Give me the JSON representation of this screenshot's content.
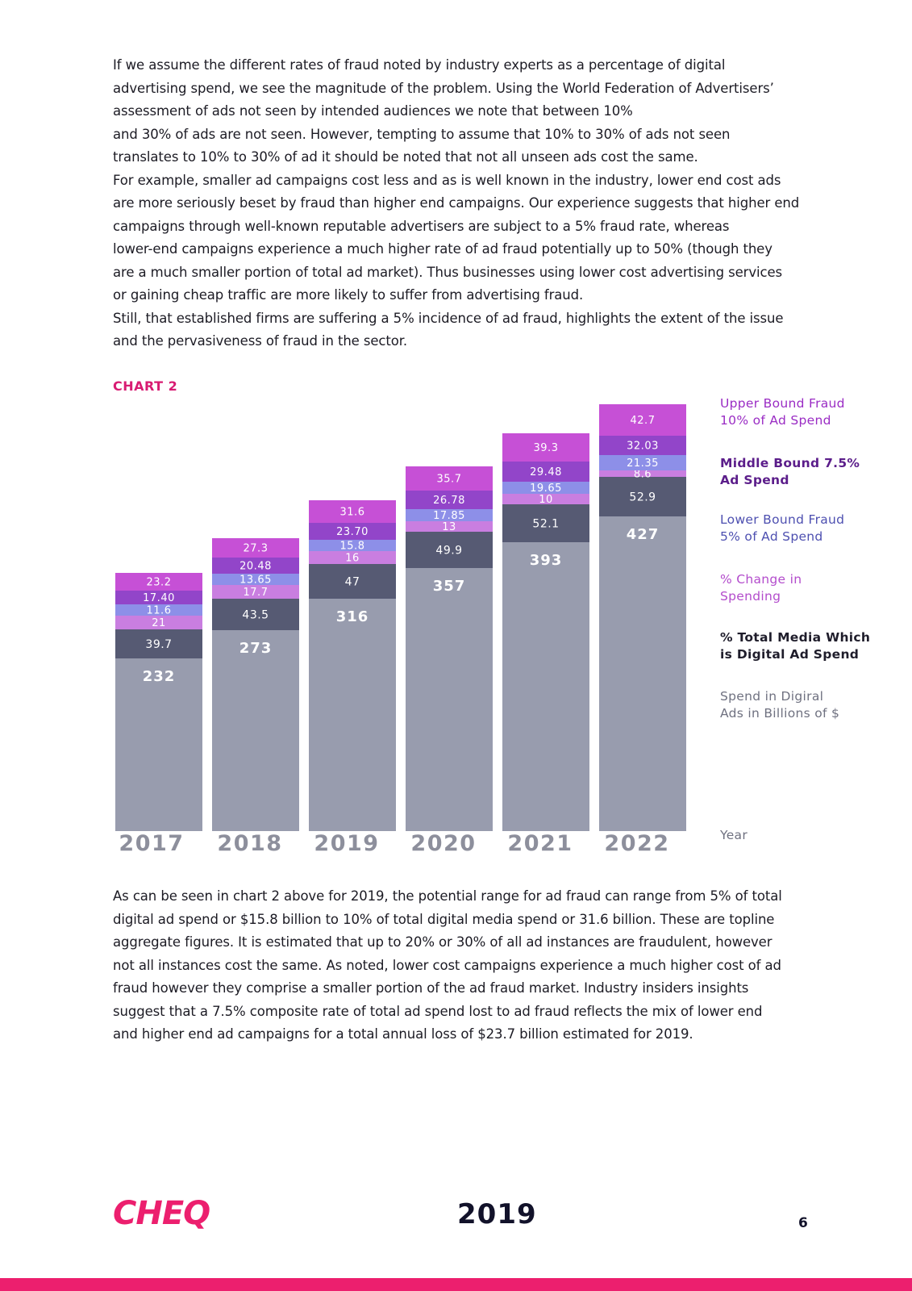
{
  "top_paragraph": {
    "lines": [
      "If we assume the different rates of fraud noted by industry experts as a percentage of digital",
      "advertising spend, we see the magnitude of the problem. Using the World Federation of Advertisers’",
      "assessment of ads not seen by intended audiences we note that between 10%",
      "and 30% of ads are not seen. However, tempting to assume that 10% to 30% of ads not seen",
      "translates to 10% to 30% of ad it should be noted that not all unseen ads cost the same.",
      "For example, smaller ad campaigns cost less and as is well known in the industry, lower end cost ads",
      "are more seriously beset by fraud than higher end campaigns. Our experience suggests that higher end",
      "campaigns through well-known reputable advertisers are subject to a 5% fraud rate, whereas",
      "lower-end campaigns experience a much higher rate of ad fraud potentially up to 50% (though they",
      "are a much smaller portion of total ad market). Thus businesses using lower cost advertising services",
      "or gaining cheap traffic are more likely to suffer from advertising fraud.",
      "Still, that established firms are suffering a 5% incidence of ad fraud, highlights the extent of the issue",
      "and the pervasiveness of fraud in the sector."
    ]
  },
  "chart_label": "CHART 2",
  "chart_data": {
    "type": "bar",
    "stacked": true,
    "categories": [
      "2017",
      "2018",
      "2019",
      "2020",
      "2021",
      "2022"
    ],
    "series": [
      {
        "name": "Spend in Digiral Ads in Billions of $",
        "color": "#989cae",
        "label_color": "#ffffff",
        "values": [
          232,
          273,
          316,
          357,
          393,
          427
        ],
        "labels": [
          "232",
          "273",
          "316",
          "357",
          "393",
          "427"
        ]
      },
      {
        "name": "% Total Media Which is Digital Ad Spend",
        "color": "#565a73",
        "label_color": "#ffffff",
        "values": [
          39.7,
          43.5,
          47,
          49.9,
          52.1,
          52.9
        ],
        "labels": [
          "39.7",
          "43.5",
          "47",
          "49.9",
          "52.1",
          "52.9"
        ]
      },
      {
        "name": "% Change in Spending",
        "color": "#c97ee0",
        "label_color": "#ffffff",
        "values": [
          21,
          17.7,
          16,
          13,
          10,
          8.6
        ],
        "labels": [
          "21",
          "17.7",
          "16",
          "13",
          "10",
          "8.6"
        ]
      },
      {
        "name": "Lower Bound Fraud 5% of Ad Spend",
        "color": "#8d8fe8",
        "label_color": "#ffffff",
        "values": [
          11.6,
          13.65,
          15.8,
          17.85,
          19.65,
          21.35
        ],
        "labels": [
          "11.6",
          "13.65",
          "15.8",
          "17.85",
          "19.65",
          "21.35"
        ]
      },
      {
        "name": "Middle Bound 7.5% Ad Spend",
        "color": "#9245c9",
        "label_color": "#ffffff",
        "values": [
          17.4,
          20.48,
          23.7,
          26.78,
          29.48,
          32.03
        ],
        "labels": [
          "17.40",
          "20.48",
          "23.70",
          "26.78",
          "29.48",
          "32.03"
        ]
      },
      {
        "name": "Upper Bound Fraud 10% of Ad Spend",
        "color": "#c650d6",
        "label_color": "#ffffff",
        "values": [
          23.2,
          27.3,
          31.6,
          35.7,
          39.3,
          42.7
        ],
        "labels": [
          "23.2",
          "27.3",
          "31.6",
          "35.7",
          "39.3",
          "42.7"
        ]
      }
    ],
    "legend": [
      {
        "line1": "Upper Bound Fraud",
        "line2": "10% of Ad Spend",
        "color": "#9a2cc4"
      },
      {
        "line1": "Middle Bound 7.5%",
        "line2": "Ad Spend",
        "color": "#5b1d8a"
      },
      {
        "line1": "Lower Bound Fraud",
        "line2": "5% of Ad Spend",
        "color": "#4d4fb0"
      },
      {
        "line1": "% Change in",
        "line2": "Spending",
        "color": "#b34ccc"
      },
      {
        "line1": "% Total Media Which",
        "line2": "is Digital Ad Spend",
        "color": "#1f1d2b"
      },
      {
        "line1": "Spend in Digiral",
        "line2": "Ads in Billions of $",
        "color": "#6f7180"
      },
      {
        "line1": "Year",
        "line2": "",
        "color": "#6f7180"
      }
    ],
    "legend_position": "right",
    "grid": false
  },
  "bottom_paragraph": {
    "lines": [
      "As can be seen in chart 2 above for 2019, the potential range for ad fraud can range from 5% of total",
      "digital ad spend or $15.8 billion to 10% of total digital media spend or 31.6 billion. These are topline",
      "aggregate figures. It is estimated that up to 20% or 30% of all ad instances are fraudulent, however",
      "not all instances cost the same. As noted, lower cost campaigns experience a much higher cost of ad",
      "fraud however they comprise a smaller portion of the ad fraud market. Industry insiders insights",
      "suggest that a 7.5% composite rate of total ad spend lost to ad fraud reflects the mix of lower end",
      "and higher end ad campaigns for a total annual loss of $23.7 billion estimated for 2019."
    ]
  },
  "footer": {
    "logo": "CHEQ",
    "year": "2019",
    "page_number": "6"
  },
  "colors": {
    "brand_pink": "#ec1f6e",
    "chart_label": "#d81b72"
  }
}
